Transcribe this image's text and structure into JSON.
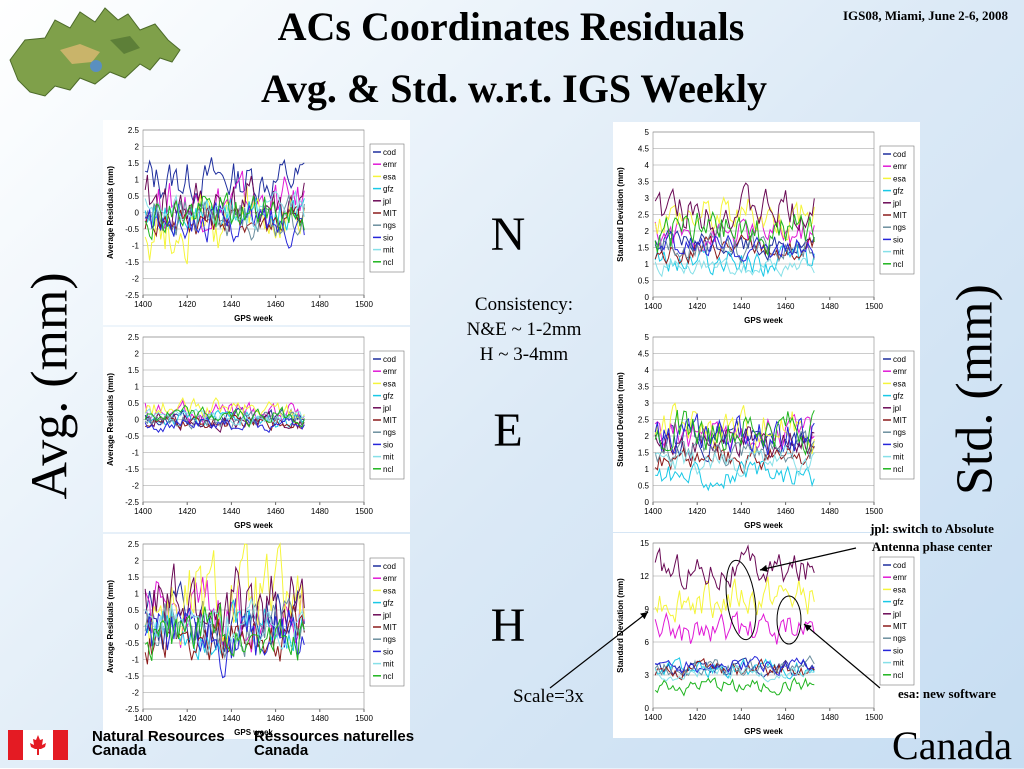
{
  "slide": {
    "title_line1": "ACs Coordinates Residuals",
    "title_line2": "Avg. & Std. w.r.t. IGS Weekly",
    "conference": "IGS08, Miami, June 2-6, 2008",
    "avg_label": "Avg. (mm)",
    "std_label": "Std. (mm)",
    "n_label": "N",
    "e_label": "E",
    "h_label": "H",
    "consistency": [
      "Consistency:",
      "N&E ~ 1-2mm",
      "H ~ 3-4mm"
    ],
    "jpl_note": [
      "jpl: switch to Absolute",
      "Antenna phase center"
    ],
    "esa_note": "esa: new software",
    "scale_note": "Scale=3x",
    "footer_en": [
      "Natural Resources",
      "Canada"
    ],
    "footer_fr": [
      "Ressources naturelles",
      "Canada"
    ],
    "canada_wordmark": "Canada"
  },
  "chart_data": [
    {
      "type": "line",
      "component": "N",
      "xlabel": "GPS week",
      "ylabel": "Average Residuals (mm)",
      "xlim": [
        1400,
        1500
      ],
      "xticks": [
        1400,
        1420,
        1440,
        1460,
        1480,
        1500
      ],
      "ylim": [
        -2.5,
        2.5
      ],
      "yticks": [
        "2.5",
        "2",
        "1.5",
        "1",
        "0.5",
        "0",
        "-0.5",
        "-1",
        "-1.5",
        "-2",
        "-2.5"
      ],
      "x_range_data": [
        1401,
        1473
      ],
      "series": [
        {
          "name": "cod",
          "color": "#1f2f9e",
          "center": 1.0,
          "amp": 0.55
        },
        {
          "name": "emr",
          "color": "#e01ad6",
          "center": 0.3,
          "amp": 0.6
        },
        {
          "name": "esa",
          "color": "#f5f53a",
          "center": -0.4,
          "amp": 0.8
        },
        {
          "name": "gfz",
          "color": "#19c8e6",
          "center": 0.0,
          "amp": 0.45
        },
        {
          "name": "jpl",
          "color": "#6a0a55",
          "center": 0.2,
          "amp": 0.7
        },
        {
          "name": "MIT",
          "color": "#8b1a1a",
          "center": -0.2,
          "amp": 0.4
        },
        {
          "name": "ngs",
          "color": "#6b8e9e",
          "center": -0.1,
          "amp": 0.5
        },
        {
          "name": "sio",
          "color": "#2626d9",
          "center": -0.3,
          "amp": 0.45
        },
        {
          "name": "mit",
          "color": "#86e0e8",
          "center": 0.1,
          "amp": 0.35
        },
        {
          "name": "ncl",
          "color": "#1eb41e",
          "center": 0.0,
          "amp": 0.5
        }
      ]
    },
    {
      "type": "line",
      "component": "E",
      "xlabel": "GPS week",
      "ylabel": "Average Residuals (mm)",
      "xlim": [
        1400,
        1500
      ],
      "xticks": [
        1400,
        1420,
        1440,
        1460,
        1480,
        1500
      ],
      "ylim": [
        -2.5,
        2.5
      ],
      "yticks": [
        "2.5",
        "2",
        "1.5",
        "1",
        "0.5",
        "0",
        "-0.5",
        "-1",
        "-1.5",
        "-2",
        "-2.5"
      ],
      "x_range_data": [
        1401,
        1473
      ],
      "series": [
        {
          "name": "cod",
          "color": "#1f2f9e",
          "center": 0.05,
          "amp": 0.2
        },
        {
          "name": "emr",
          "color": "#e01ad6",
          "center": 0.25,
          "amp": 0.25
        },
        {
          "name": "esa",
          "color": "#f5f53a",
          "center": 0.3,
          "amp": 0.25
        },
        {
          "name": "gfz",
          "color": "#19c8e6",
          "center": 0.0,
          "amp": 0.2
        },
        {
          "name": "jpl",
          "color": "#6a0a55",
          "center": -0.05,
          "amp": 0.2
        },
        {
          "name": "MIT",
          "color": "#8b1a1a",
          "center": -0.1,
          "amp": 0.15
        },
        {
          "name": "ngs",
          "color": "#6b8e9e",
          "center": 0.0,
          "amp": 0.2
        },
        {
          "name": "sio",
          "color": "#2626d9",
          "center": -0.15,
          "amp": 0.18
        },
        {
          "name": "mit",
          "color": "#86e0e8",
          "center": 0.05,
          "amp": 0.15
        },
        {
          "name": "ncl",
          "color": "#1eb41e",
          "center": 0.1,
          "amp": 0.2
        }
      ]
    },
    {
      "type": "line",
      "component": "H",
      "xlabel": "GPS week",
      "ylabel": "Average Residuals (mm)",
      "xlim": [
        1400,
        1500
      ],
      "xticks": [
        1400,
        1420,
        1440,
        1460,
        1480,
        1500
      ],
      "ylim": [
        -2.5,
        2.5
      ],
      "yticks": [
        "2.5",
        "2",
        "1.5",
        "1",
        "0.5",
        "0",
        "-0.5",
        "-1",
        "-1.5",
        "-2",
        "-2.5"
      ],
      "x_range_data": [
        1401,
        1473
      ],
      "series": [
        {
          "name": "cod",
          "color": "#1f2f9e",
          "center": 0.1,
          "amp": 0.7
        },
        {
          "name": "emr",
          "color": "#e01ad6",
          "center": 0.3,
          "amp": 0.8
        },
        {
          "name": "esa",
          "color": "#f5f53a",
          "center": 0.6,
          "amp": 1.2
        },
        {
          "name": "gfz",
          "color": "#19c8e6",
          "center": 0.0,
          "amp": 0.6
        },
        {
          "name": "jpl",
          "color": "#6a0a55",
          "center": 0.5,
          "amp": 1.0
        },
        {
          "name": "MIT",
          "color": "#8b1a1a",
          "center": -0.3,
          "amp": 0.6
        },
        {
          "name": "ngs",
          "color": "#6b8e9e",
          "center": 0.0,
          "amp": 0.6
        },
        {
          "name": "sio",
          "color": "#2626d9",
          "center": -0.5,
          "amp": 0.7
        },
        {
          "name": "mit",
          "color": "#86e0e8",
          "center": 0.1,
          "amp": 0.5
        },
        {
          "name": "ncl",
          "color": "#1eb41e",
          "center": -0.2,
          "amp": 0.6
        }
      ]
    },
    {
      "type": "line",
      "component": "N",
      "xlabel": "GPS week",
      "ylabel": "Standard Deviation (mm)",
      "xlim": [
        1400,
        1500
      ],
      "xticks": [
        1400,
        1420,
        1440,
        1460,
        1480,
        1500
      ],
      "ylim": [
        0,
        5
      ],
      "yticks": [
        "5",
        "4.5",
        "4",
        "3.5",
        "3",
        "2.5",
        "2",
        "1.5",
        "1",
        "0.5",
        "0"
      ],
      "x_range_data": [
        1401,
        1473
      ],
      "series": [
        {
          "name": "cod",
          "color": "#1f2f9e",
          "center": 1.6,
          "amp": 0.3
        },
        {
          "name": "emr",
          "color": "#e01ad6",
          "center": 1.9,
          "amp": 0.4
        },
        {
          "name": "esa",
          "color": "#f5f53a",
          "center": 2.5,
          "amp": 0.5
        },
        {
          "name": "gfz",
          "color": "#19c8e6",
          "center": 1.1,
          "amp": 0.35
        },
        {
          "name": "jpl",
          "color": "#6a0a55",
          "center": 2.6,
          "amp": 0.5
        },
        {
          "name": "MIT",
          "color": "#8b1a1a",
          "center": 1.4,
          "amp": 0.3
        },
        {
          "name": "ngs",
          "color": "#6b8e9e",
          "center": 1.6,
          "amp": 0.35
        },
        {
          "name": "sio",
          "color": "#2626d9",
          "center": 1.5,
          "amp": 0.3
        },
        {
          "name": "mit",
          "color": "#86e0e8",
          "center": 0.9,
          "amp": 0.2
        },
        {
          "name": "ncl",
          "color": "#1eb41e",
          "center": 2.0,
          "amp": 0.5
        }
      ]
    },
    {
      "type": "line",
      "component": "E",
      "xlabel": "GPS week",
      "ylabel": "Standard Deviation (mm)",
      "xlim": [
        1400,
        1500
      ],
      "xticks": [
        1400,
        1420,
        1440,
        1460,
        1480,
        1500
      ],
      "ylim": [
        0,
        5
      ],
      "yticks": [
        "5",
        "4.5",
        "4",
        "3.5",
        "3",
        "2.5",
        "2",
        "1.5",
        "1",
        "0.5",
        "0"
      ],
      "x_range_data": [
        1401,
        1473
      ],
      "series": [
        {
          "name": "cod",
          "color": "#1f2f9e",
          "center": 1.9,
          "amp": 0.4
        },
        {
          "name": "emr",
          "color": "#e01ad6",
          "center": 2.0,
          "amp": 0.4
        },
        {
          "name": "esa",
          "color": "#f5f53a",
          "center": 2.3,
          "amp": 0.5
        },
        {
          "name": "gfz",
          "color": "#19c8e6",
          "center": 0.8,
          "amp": 0.3
        },
        {
          "name": "jpl",
          "color": "#6a0a55",
          "center": 1.8,
          "amp": 0.4
        },
        {
          "name": "MIT",
          "color": "#8b1a1a",
          "center": 1.3,
          "amp": 0.3
        },
        {
          "name": "ngs",
          "color": "#6b8e9e",
          "center": 1.6,
          "amp": 0.35
        },
        {
          "name": "sio",
          "color": "#2626d9",
          "center": 2.0,
          "amp": 0.45
        },
        {
          "name": "mit",
          "color": "#86e0e8",
          "center": 1.2,
          "amp": 0.3
        },
        {
          "name": "ncl",
          "color": "#1eb41e",
          "center": 2.2,
          "amp": 0.5
        }
      ]
    },
    {
      "type": "line",
      "component": "H",
      "xlabel": "GPS week",
      "ylabel": "Standard Deviation (mm)",
      "xlim": [
        1400,
        1500
      ],
      "xticks": [
        1400,
        1420,
        1440,
        1460,
        1480,
        1500
      ],
      "ylim": [
        0,
        15
      ],
      "yticks": [
        "15",
        "12",
        "9",
        "6",
        "3",
        "0"
      ],
      "x_range_data": [
        1401,
        1473
      ],
      "series": [
        {
          "name": "cod",
          "color": "#1f2f9e",
          "center": 3.8,
          "amp": 0.6
        },
        {
          "name": "emr",
          "color": "#e01ad6",
          "center": 7.0,
          "amp": 1.2
        },
        {
          "name": "esa",
          "color": "#f5f53a",
          "center": 10.0,
          "amp": 1.5
        },
        {
          "name": "gfz",
          "color": "#19c8e6",
          "center": 3.6,
          "amp": 0.6
        },
        {
          "name": "jpl",
          "color": "#6a0a55",
          "center": 12.5,
          "amp": 1.3
        },
        {
          "name": "MIT",
          "color": "#8b1a1a",
          "center": 3.5,
          "amp": 0.6
        },
        {
          "name": "ngs",
          "color": "#6b8e9e",
          "center": 3.8,
          "amp": 0.6
        },
        {
          "name": "sio",
          "color": "#2626d9",
          "center": 3.9,
          "amp": 0.6
        },
        {
          "name": "mit",
          "color": "#86e0e8",
          "center": 3.2,
          "amp": 0.5
        },
        {
          "name": "ncl",
          "color": "#1eb41e",
          "center": 2.0,
          "amp": 0.6
        }
      ]
    }
  ]
}
